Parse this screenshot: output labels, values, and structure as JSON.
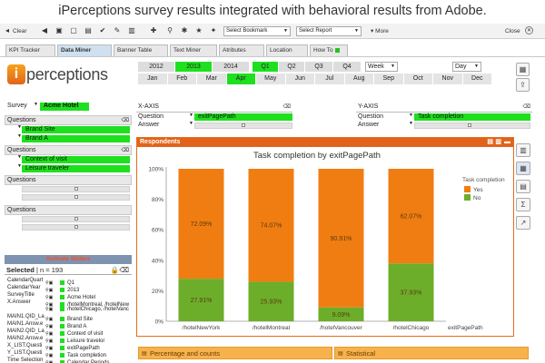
{
  "headline": "iPerceptions survey results integrated with behavioral results from Adobe.",
  "toolbar": {
    "clear_label": "Clear",
    "bookmark_select": "Select Bookmark",
    "report_select": "Select Report",
    "more_label": "More",
    "close_label": "Close"
  },
  "tabs": [
    "KPI Tracker",
    "Data Miner",
    "Banner Table",
    "Text Miner",
    "Atributes",
    "Location",
    "How To"
  ],
  "logo_text": "perceptions",
  "logo_letter": "i",
  "years": [
    "2012",
    "2013",
    "2014"
  ],
  "quarters": [
    "Q1",
    "Q2",
    "Q3",
    "Q4"
  ],
  "week_select": "Week",
  "day_select": "Day",
  "months": [
    "Jan",
    "Feb",
    "Mar",
    "Apr",
    "May",
    "Jun",
    "Jul",
    "Aug",
    "Sep",
    "Oct",
    "Nov",
    "Dec"
  ],
  "left": {
    "survey_label": "Survey",
    "survey_value": "Acme Hotel",
    "questions_label": "Questions",
    "q1_values": [
      "Brand Site",
      "Brand A"
    ],
    "q2_values": [
      "Context of visit",
      "Leisure traveler"
    ],
    "activate_sliders": "Activate Sliders",
    "selected_label": "Selected",
    "selected_n": "n = 193",
    "selections": [
      {
        "field": "CalendarQuart",
        "value": "Q1"
      },
      {
        "field": "CalendarYear",
        "value": "2013"
      },
      {
        "field": "SurveyTitle",
        "value": "Acme Hotel"
      },
      {
        "field": "X.Answer",
        "value": "/hotelMontreal, /hotelNew"
      },
      {
        "field": "",
        "value": "/hotelChicago, /hotelVanc"
      },
      {
        "field": "MAIN1.QID_La",
        "value": "Brand Site"
      },
      {
        "field": "MAIN1.Answ.e",
        "value": "Brand A"
      },
      {
        "field": "MAIN2.QID_La",
        "value": "Context of visit"
      },
      {
        "field": "MAIN2.Answ.e",
        "value": "Leisure travelor"
      },
      {
        "field": "X_LIST.Questi",
        "value": "exitPagePath"
      },
      {
        "field": "Y_LIST.Questi",
        "value": "Task completion"
      },
      {
        "field": "Time Selection",
        "value": "Calendar Periods"
      }
    ]
  },
  "xaxis": {
    "title": "X-AXIS",
    "question_label": "Question",
    "question_value": "exitPagePath",
    "answer_label": "Answer"
  },
  "yaxis": {
    "title": "Y-AXIS",
    "question_label": "Question",
    "question_value": "Task completion",
    "answer_label": "Answer"
  },
  "respondents_label": "Respondents",
  "chart_data": {
    "type": "bar",
    "stacked": true,
    "title": "Task completion by exitPagePath",
    "xlabel": "exitPagePath",
    "ylabel": "",
    "categories": [
      "/hotelNewYork",
      "/hotelMontreal",
      "/hotelVancouver",
      "/hotelChicago"
    ],
    "series": [
      {
        "name": "Yes",
        "values": [
          72.09,
          74.07,
          90.91,
          62.07
        ],
        "color": "#f07d12"
      },
      {
        "name": "No",
        "values": [
          27.91,
          25.93,
          9.09,
          37.93
        ],
        "color": "#6cae2a"
      }
    ],
    "data_labels": [
      [
        "72.09%",
        "74.07%",
        "90.91%",
        "62.07%"
      ],
      [
        "27.91%",
        "25.93%",
        "9.09%",
        "37.93%"
      ]
    ],
    "y_ticks": [
      "0%",
      "20%",
      "40%",
      "60%",
      "80%",
      "100%"
    ],
    "ylim": [
      0,
      100
    ],
    "legend_title": "Task completion",
    "legend_position": "top-right"
  },
  "bottom_tabs": [
    "Percentage and counts",
    "Statistical"
  ]
}
